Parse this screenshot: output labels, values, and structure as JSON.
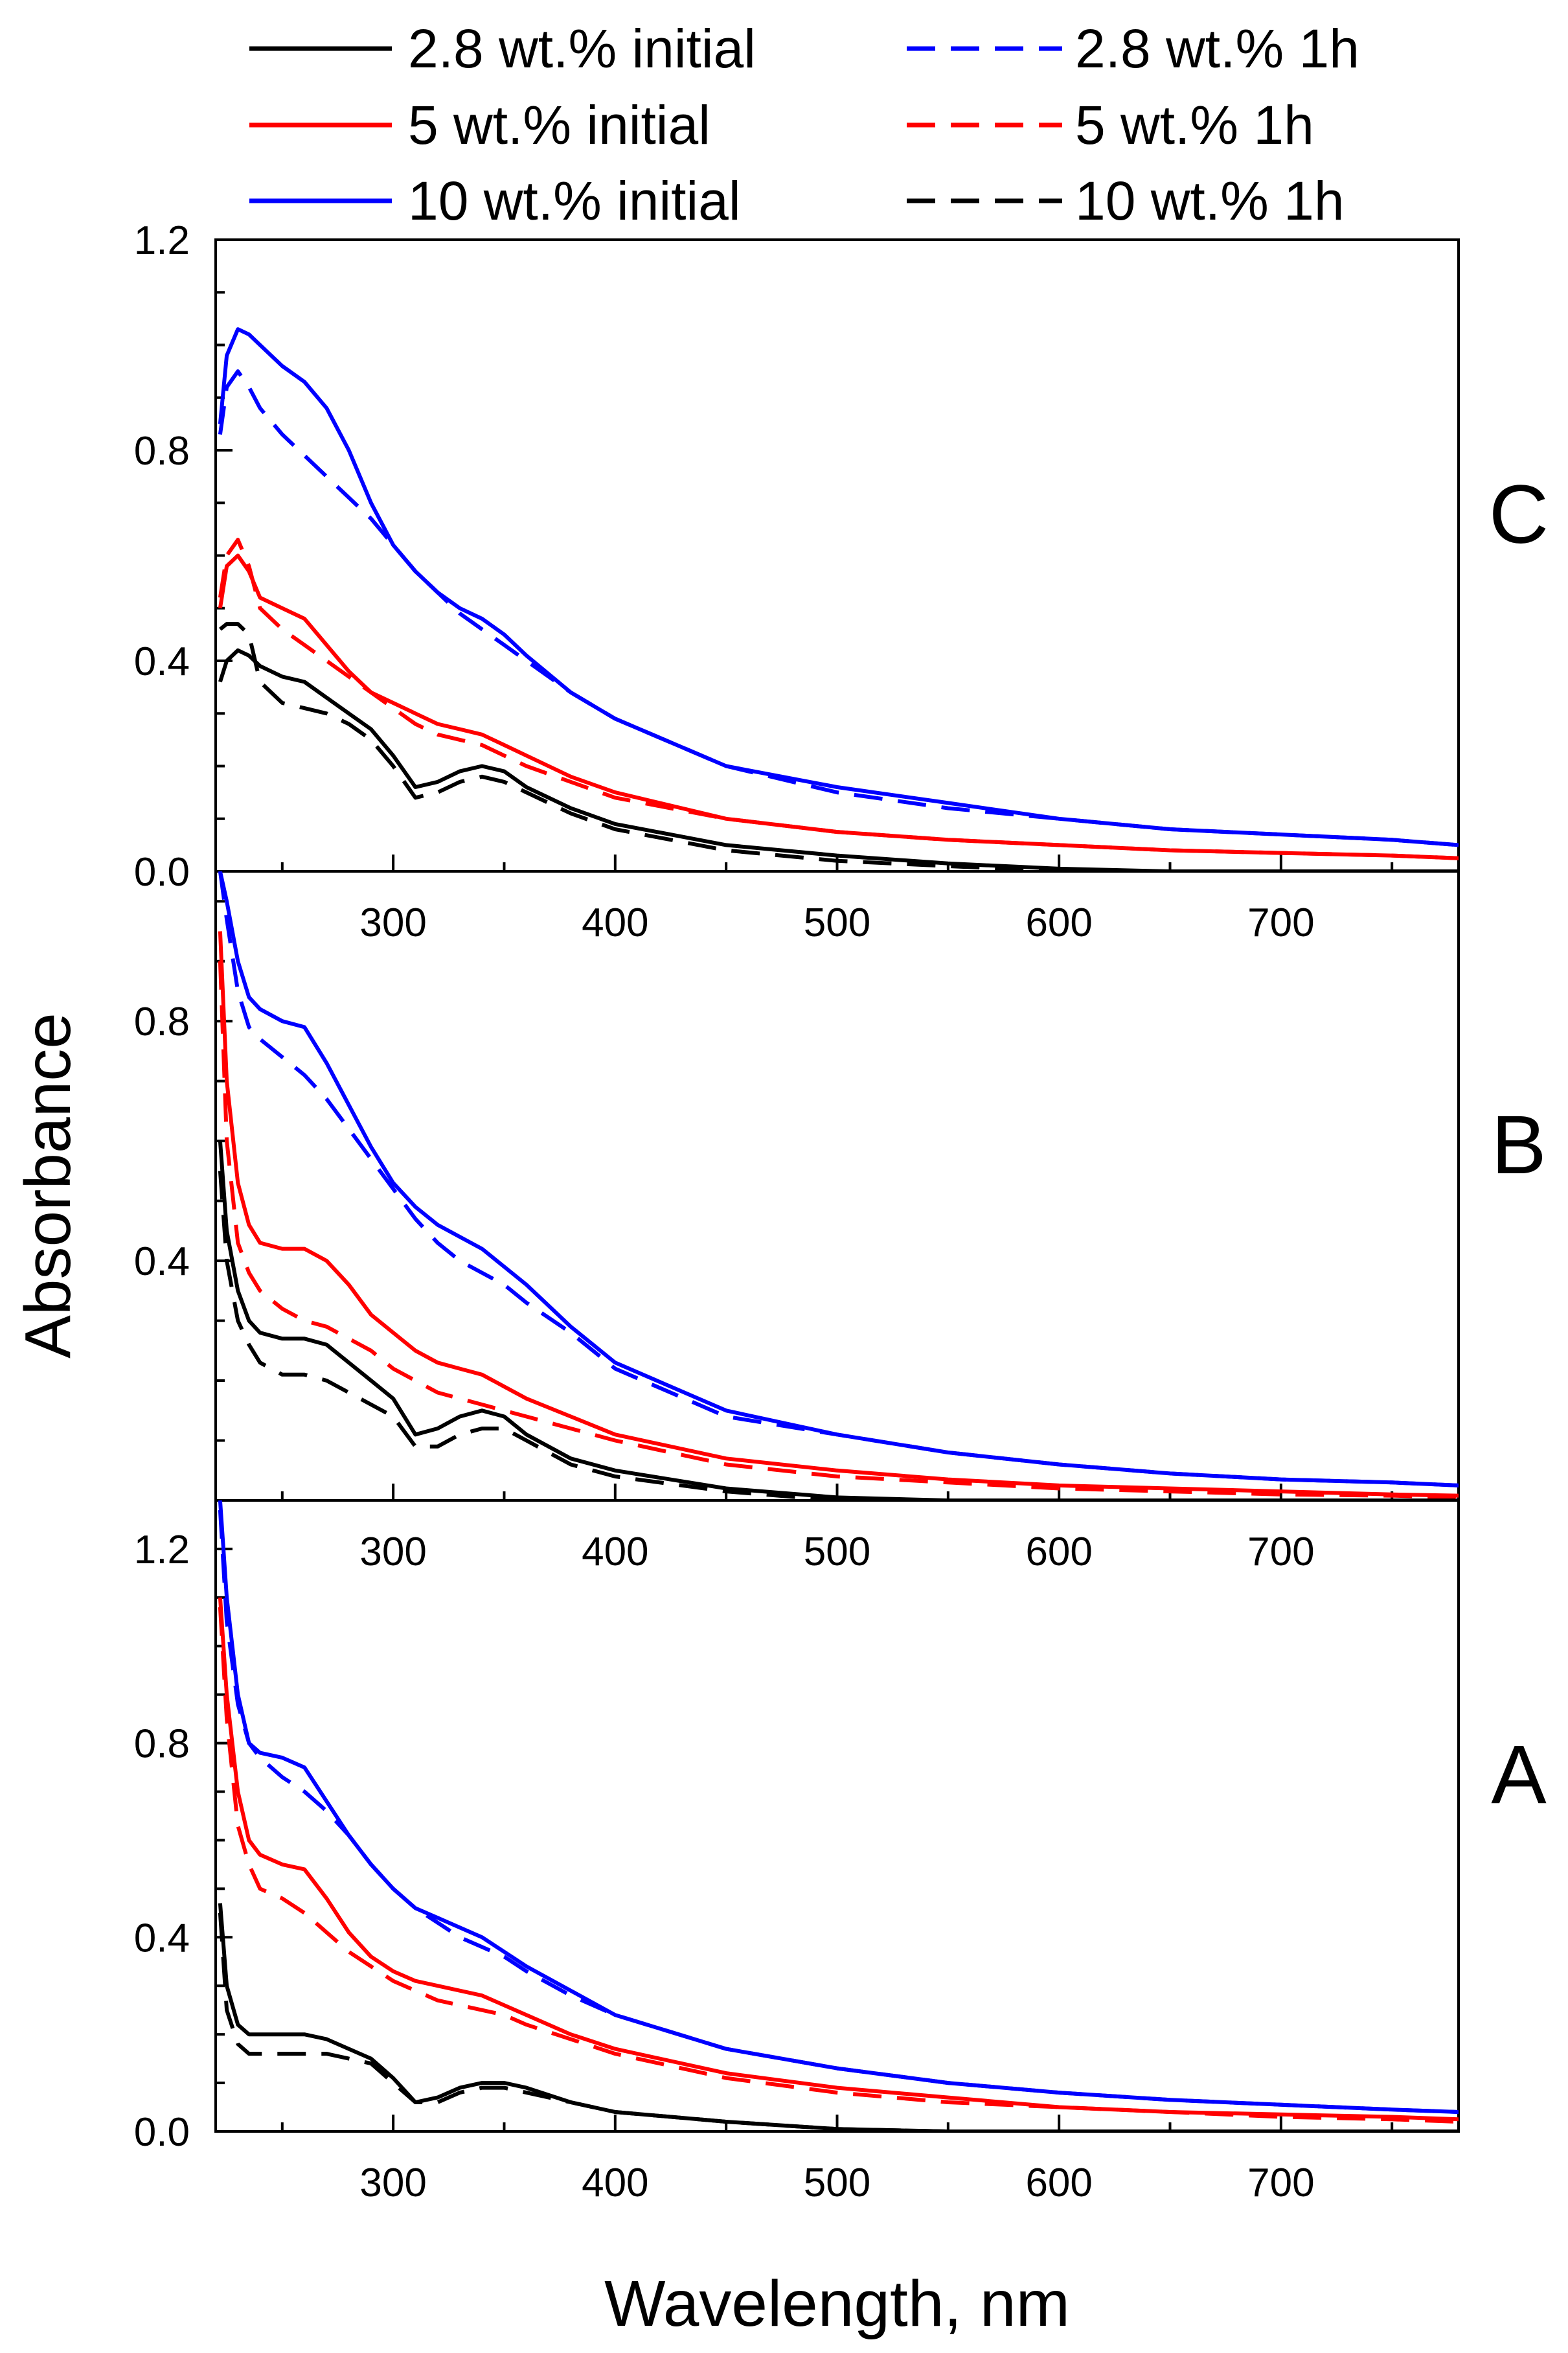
{
  "chart_data": {
    "type": "line",
    "xlabel": "Wavelength, nm",
    "ylabel": "Absorbance",
    "xlim": [
      220,
      780
    ],
    "x_ticks": [
      "300",
      "400",
      "500",
      "600",
      "700"
    ],
    "x_tick_values": [
      300,
      400,
      500,
      600,
      700
    ],
    "legend": {
      "placement": "top, above plots (two columns)",
      "entries": [
        {
          "label": "2.8 wt.% initial",
          "color": "#000000",
          "style": "solid"
        },
        {
          "label": "5 wt.% initial",
          "color": "#ff0000",
          "style": "solid"
        },
        {
          "label": "10 wt.% initial",
          "color": "#0000ff",
          "style": "solid"
        },
        {
          "label": "2.8 wt.% 1h",
          "color": "#0000ff",
          "style": "dashed"
        },
        {
          "label": "5 wt.% 1h",
          "color": "#ff0000",
          "style": "dashed"
        },
        {
          "label": "10  wt.% 1h",
          "color": "#000000",
          "style": "dashed"
        }
      ]
    },
    "x": [
      222,
      225,
      230,
      235,
      240,
      250,
      260,
      270,
      280,
      290,
      300,
      310,
      320,
      330,
      340,
      350,
      360,
      380,
      400,
      450,
      500,
      550,
      600,
      650,
      700,
      750,
      780
    ],
    "panels": [
      {
        "label": "C",
        "ylim": [
          0,
          1.2
        ],
        "y_ticks": [
          "0.0",
          "0.4",
          "0.8",
          "1.2"
        ],
        "y_tick_values": [
          0,
          0.4,
          0.8,
          1.2
        ],
        "series": [
          {
            "legend_index": 0,
            "color": "#000000",
            "style": "solid",
            "values": [
              0.36,
              0.4,
              0.42,
              0.41,
              0.39,
              0.37,
              0.36,
              0.33,
              0.3,
              0.27,
              0.22,
              0.16,
              0.17,
              0.19,
              0.2,
              0.19,
              0.16,
              0.12,
              0.09,
              0.05,
              0.03,
              0.015,
              0.005,
              0.0,
              0.0,
              0.0,
              0.0
            ]
          },
          {
            "legend_index": 1,
            "color": "#ff0000",
            "style": "solid",
            "values": [
              0.5,
              0.58,
              0.6,
              0.57,
              0.52,
              0.5,
              0.48,
              0.43,
              0.38,
              0.34,
              0.32,
              0.3,
              0.28,
              0.27,
              0.26,
              0.24,
              0.22,
              0.18,
              0.15,
              0.1,
              0.075,
              0.06,
              0.05,
              0.04,
              0.035,
              0.03,
              0.025
            ]
          },
          {
            "legend_index": 2,
            "color": "#0000ff",
            "style": "solid",
            "values": [
              0.85,
              0.98,
              1.03,
              1.02,
              1.0,
              0.96,
              0.93,
              0.88,
              0.8,
              0.7,
              0.62,
              0.57,
              0.53,
              0.5,
              0.48,
              0.45,
              0.41,
              0.34,
              0.29,
              0.2,
              0.16,
              0.13,
              0.1,
              0.08,
              0.07,
              0.06,
              0.05
            ]
          },
          {
            "legend_index": 3,
            "color": "#0000ff",
            "style": "dashed",
            "values": [
              0.83,
              0.92,
              0.95,
              0.92,
              0.88,
              0.83,
              0.79,
              0.75,
              0.71,
              0.67,
              0.62,
              0.57,
              0.53,
              0.49,
              0.46,
              0.43,
              0.4,
              0.34,
              0.29,
              0.2,
              0.15,
              0.12,
              0.1,
              0.08,
              0.07,
              0.06,
              0.05
            ]
          },
          {
            "legend_index": 4,
            "color": "#ff0000",
            "style": "dashed",
            "values": [
              0.52,
              0.6,
              0.63,
              0.58,
              0.5,
              0.46,
              0.43,
              0.4,
              0.37,
              0.34,
              0.31,
              0.28,
              0.26,
              0.25,
              0.24,
              0.22,
              0.2,
              0.17,
              0.14,
              0.1,
              0.075,
              0.06,
              0.05,
              0.04,
              0.035,
              0.03,
              0.025
            ]
          },
          {
            "legend_index": 5,
            "color": "#000000",
            "style": "dashed",
            "values": [
              0.46,
              0.47,
              0.47,
              0.45,
              0.36,
              0.32,
              0.31,
              0.3,
              0.28,
              0.25,
              0.2,
              0.14,
              0.15,
              0.17,
              0.18,
              0.17,
              0.15,
              0.11,
              0.08,
              0.04,
              0.02,
              0.01,
              0.0,
              0.0,
              0.0,
              0.0,
              0.0
            ]
          }
        ]
      },
      {
        "label": "B",
        "ylim": [
          0,
          1.05
        ],
        "y_ticks": [
          "0.4",
          "0.8"
        ],
        "y_tick_values": [
          0.4,
          0.8
        ],
        "series": [
          {
            "legend_index": 0,
            "color": "#000000",
            "style": "solid",
            "values": [
              0.6,
              0.45,
              0.35,
              0.3,
              0.28,
              0.27,
              0.27,
              0.26,
              0.23,
              0.2,
              0.17,
              0.11,
              0.12,
              0.14,
              0.15,
              0.14,
              0.11,
              0.07,
              0.05,
              0.02,
              0.005,
              0.0,
              0.0,
              0.0,
              0.0,
              0.0,
              0.0
            ]
          },
          {
            "legend_index": 1,
            "color": "#ff0000",
            "style": "solid",
            "values": [
              0.95,
              0.7,
              0.53,
              0.46,
              0.43,
              0.42,
              0.42,
              0.4,
              0.36,
              0.31,
              0.28,
              0.25,
              0.23,
              0.22,
              0.21,
              0.19,
              0.17,
              0.14,
              0.11,
              0.07,
              0.05,
              0.035,
              0.025,
              0.02,
              0.015,
              0.01,
              0.008
            ]
          },
          {
            "legend_index": 2,
            "color": "#0000ff",
            "style": "solid",
            "values": [
              1.05,
              1.0,
              0.9,
              0.84,
              0.82,
              0.8,
              0.79,
              0.73,
              0.66,
              0.59,
              0.53,
              0.49,
              0.46,
              0.44,
              0.42,
              0.39,
              0.36,
              0.29,
              0.23,
              0.15,
              0.11,
              0.08,
              0.06,
              0.045,
              0.035,
              0.03,
              0.025
            ]
          },
          {
            "legend_index": 3,
            "color": "#0000ff",
            "style": "dashed",
            "values": [
              1.05,
              0.97,
              0.85,
              0.79,
              0.77,
              0.74,
              0.71,
              0.67,
              0.62,
              0.57,
              0.52,
              0.47,
              0.43,
              0.4,
              0.38,
              0.36,
              0.33,
              0.28,
              0.22,
              0.14,
              0.11,
              0.08,
              0.06,
              0.045,
              0.035,
              0.03,
              0.025
            ]
          },
          {
            "legend_index": 4,
            "color": "#ff0000",
            "style": "dashed",
            "values": [
              0.9,
              0.6,
              0.43,
              0.38,
              0.35,
              0.32,
              0.3,
              0.29,
              0.27,
              0.25,
              0.22,
              0.2,
              0.18,
              0.17,
              0.16,
              0.15,
              0.14,
              0.12,
              0.1,
              0.06,
              0.04,
              0.03,
              0.02,
              0.015,
              0.01,
              0.008,
              0.005
            ]
          },
          {
            "legend_index": 5,
            "color": "#000000",
            "style": "dashed",
            "values": [
              0.55,
              0.4,
              0.3,
              0.26,
              0.23,
              0.21,
              0.21,
              0.2,
              0.18,
              0.16,
              0.14,
              0.09,
              0.09,
              0.11,
              0.12,
              0.12,
              0.1,
              0.06,
              0.04,
              0.015,
              0.0,
              0.0,
              0.0,
              0.0,
              0.0,
              0.0,
              0.0
            ]
          }
        ]
      },
      {
        "label": "A",
        "ylim": [
          0,
          1.3
        ],
        "y_ticks": [
          "0.0",
          "0.4",
          "0.8",
          "1.2"
        ],
        "y_tick_values": [
          0,
          0.4,
          0.8,
          1.2
        ],
        "series": [
          {
            "legend_index": 0,
            "color": "#000000",
            "style": "solid",
            "values": [
              0.47,
              0.3,
              0.22,
              0.2,
              0.2,
              0.2,
              0.2,
              0.19,
              0.17,
              0.15,
              0.11,
              0.06,
              0.07,
              0.09,
              0.1,
              0.1,
              0.09,
              0.06,
              0.04,
              0.02,
              0.005,
              0.0,
              0.0,
              0.0,
              0.0,
              0.0,
              0.0
            ]
          },
          {
            "legend_index": 1,
            "color": "#ff0000",
            "style": "solid",
            "values": [
              1.1,
              0.9,
              0.7,
              0.6,
              0.57,
              0.55,
              0.54,
              0.48,
              0.41,
              0.36,
              0.33,
              0.31,
              0.3,
              0.29,
              0.28,
              0.26,
              0.24,
              0.2,
              0.17,
              0.12,
              0.09,
              0.07,
              0.05,
              0.04,
              0.035,
              0.03,
              0.025
            ]
          },
          {
            "legend_index": 2,
            "color": "#0000ff",
            "style": "solid",
            "values": [
              1.3,
              1.1,
              0.9,
              0.8,
              0.78,
              0.77,
              0.75,
              0.68,
              0.61,
              0.55,
              0.5,
              0.46,
              0.44,
              0.42,
              0.4,
              0.37,
              0.34,
              0.29,
              0.24,
              0.17,
              0.13,
              0.1,
              0.08,
              0.065,
              0.055,
              0.045,
              0.04
            ]
          },
          {
            "legend_index": 3,
            "color": "#0000ff",
            "style": "dashed",
            "values": [
              1.28,
              1.05,
              0.88,
              0.8,
              0.77,
              0.73,
              0.7,
              0.66,
              0.61,
              0.55,
              0.5,
              0.46,
              0.43,
              0.4,
              0.38,
              0.36,
              0.33,
              0.28,
              0.24,
              0.17,
              0.13,
              0.1,
              0.08,
              0.065,
              0.055,
              0.045,
              0.04
            ]
          },
          {
            "legend_index": 4,
            "color": "#ff0000",
            "style": "dashed",
            "values": [
              1.08,
              0.85,
              0.63,
              0.55,
              0.5,
              0.48,
              0.45,
              0.41,
              0.37,
              0.34,
              0.31,
              0.29,
              0.27,
              0.26,
              0.25,
              0.24,
              0.22,
              0.19,
              0.16,
              0.11,
              0.08,
              0.06,
              0.05,
              0.04,
              0.03,
              0.025,
              0.02
            ]
          },
          {
            "legend_index": 5,
            "color": "#000000",
            "style": "dashed",
            "values": [
              0.45,
              0.25,
              0.18,
              0.16,
              0.16,
              0.16,
              0.16,
              0.16,
              0.15,
              0.14,
              0.1,
              0.06,
              0.06,
              0.08,
              0.09,
              0.09,
              0.08,
              0.06,
              0.04,
              0.02,
              0.005,
              0.0,
              0.0,
              0.0,
              0.0,
              0.0,
              0.0
            ]
          }
        ]
      }
    ]
  }
}
